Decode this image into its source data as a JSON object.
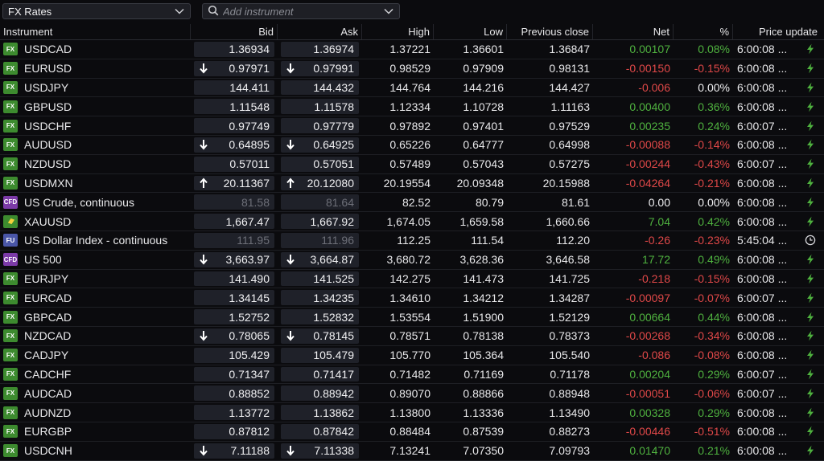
{
  "toolbar": {
    "list_name": "FX Rates",
    "search_placeholder": "Add instrument"
  },
  "columns": {
    "instrument": "Instrument",
    "bid": "Bid",
    "ask": "Ask",
    "high": "High",
    "low": "Low",
    "prev": "Previous close",
    "net": "Net",
    "pct": "%",
    "update": "Price update"
  },
  "colors": {
    "positive": "#4fb23f",
    "negative": "#e04848",
    "fx_badge": "#3d8b2f",
    "cfd_badge": "#7c3aa8",
    "fu_badge": "#4a56a8"
  },
  "rows": [
    {
      "badge": "FX",
      "name": "USDCAD",
      "bid": "1.36934",
      "ask": "1.36974",
      "arrow": "",
      "high": "1.37221",
      "low": "1.36601",
      "prev": "1.36847",
      "net": "0.00107",
      "pct": "0.08%",
      "dir": "pos",
      "time": "6:00:08 ...",
      "icon": "bolt-icon",
      "dim": false
    },
    {
      "badge": "FX",
      "name": "EURUSD",
      "bid": "0.97971",
      "ask": "0.97991",
      "arrow": "down",
      "high": "0.98529",
      "low": "0.97909",
      "prev": "0.98131",
      "net": "-0.00150",
      "pct": "-0.15%",
      "dir": "neg",
      "time": "6:00:08 ...",
      "icon": "bolt-icon",
      "dim": false
    },
    {
      "badge": "FX",
      "name": "USDJPY",
      "bid": "144.411",
      "ask": "144.432",
      "arrow": "",
      "high": "144.764",
      "low": "144.216",
      "prev": "144.427",
      "net": "-0.006",
      "pct": "0.00%",
      "dir": "neg",
      "pct_dir": "zero",
      "time": "6:00:08 ...",
      "icon": "bolt-icon",
      "dim": false
    },
    {
      "badge": "FX",
      "name": "GBPUSD",
      "bid": "1.11548",
      "ask": "1.11578",
      "arrow": "",
      "high": "1.12334",
      "low": "1.10728",
      "prev": "1.11163",
      "net": "0.00400",
      "pct": "0.36%",
      "dir": "pos",
      "time": "6:00:08 ...",
      "icon": "bolt-icon",
      "dim": false
    },
    {
      "badge": "FX",
      "name": "USDCHF",
      "bid": "0.97749",
      "ask": "0.97779",
      "arrow": "",
      "high": "0.97892",
      "low": "0.97401",
      "prev": "0.97529",
      "net": "0.00235",
      "pct": "0.24%",
      "dir": "pos",
      "time": "6:00:07 ...",
      "icon": "bolt-icon",
      "dim": false
    },
    {
      "badge": "FX",
      "name": "AUDUSD",
      "bid": "0.64895",
      "ask": "0.64925",
      "arrow": "down",
      "high": "0.65226",
      "low": "0.64777",
      "prev": "0.64998",
      "net": "-0.00088",
      "pct": "-0.14%",
      "dir": "neg",
      "time": "6:00:08 ...",
      "icon": "bolt-icon",
      "dim": false
    },
    {
      "badge": "FX",
      "name": "NZDUSD",
      "bid": "0.57011",
      "ask": "0.57051",
      "arrow": "",
      "high": "0.57489",
      "low": "0.57043",
      "prev": "0.57275",
      "net": "-0.00244",
      "pct": "-0.43%",
      "dir": "neg",
      "time": "6:00:07 ...",
      "icon": "bolt-icon",
      "dim": false
    },
    {
      "badge": "FX",
      "name": "USDMXN",
      "bid": "20.11367",
      "ask": "20.12080",
      "arrow": "up",
      "high": "20.19554",
      "low": "20.09348",
      "prev": "20.15988",
      "net": "-0.04264",
      "pct": "-0.21%",
      "dir": "neg",
      "time": "6:00:08 ...",
      "icon": "bolt-icon",
      "dim": false
    },
    {
      "badge": "CFD",
      "name": "US Crude, continuous",
      "bid": "81.58",
      "ask": "81.64",
      "arrow": "",
      "high": "82.52",
      "low": "80.79",
      "prev": "81.61",
      "net": "0.00",
      "pct": "0.00%",
      "dir": "zero",
      "time": "6:00:08 ...",
      "icon": "bolt-icon",
      "dim": true
    },
    {
      "badge": "AU",
      "name": "XAUUSD",
      "bid": "1,667.47",
      "ask": "1,667.92",
      "arrow": "",
      "high": "1,674.05",
      "low": "1,659.58",
      "prev": "1,660.66",
      "net": "7.04",
      "pct": "0.42%",
      "dir": "pos",
      "time": "6:00:08 ...",
      "icon": "bolt-icon",
      "dim": false
    },
    {
      "badge": "FU",
      "name": "US Dollar Index - continuous",
      "bid": "111.95",
      "ask": "111.96",
      "arrow": "",
      "high": "112.25",
      "low": "111.54",
      "prev": "112.20",
      "net": "-0.26",
      "pct": "-0.23%",
      "dir": "neg",
      "time": "5:45:04 ...",
      "icon": "clock-icon",
      "dim": true
    },
    {
      "badge": "CFD",
      "name": "US 500",
      "bid": "3,663.97",
      "ask": "3,664.87",
      "arrow": "down",
      "high": "3,680.72",
      "low": "3,628.36",
      "prev": "3,646.58",
      "net": "17.72",
      "pct": "0.49%",
      "dir": "pos",
      "time": "6:00:08 ...",
      "icon": "bolt-icon",
      "dim": false
    },
    {
      "badge": "FX",
      "name": "EURJPY",
      "bid": "141.490",
      "ask": "141.525",
      "arrow": "",
      "high": "142.275",
      "low": "141.473",
      "prev": "141.725",
      "net": "-0.218",
      "pct": "-0.15%",
      "dir": "neg",
      "time": "6:00:08 ...",
      "icon": "bolt-icon",
      "dim": false
    },
    {
      "badge": "FX",
      "name": "EURCAD",
      "bid": "1.34145",
      "ask": "1.34235",
      "arrow": "",
      "high": "1.34610",
      "low": "1.34212",
      "prev": "1.34287",
      "net": "-0.00097",
      "pct": "-0.07%",
      "dir": "neg",
      "time": "6:00:07 ...",
      "icon": "bolt-icon",
      "dim": false
    },
    {
      "badge": "FX",
      "name": "GBPCAD",
      "bid": "1.52752",
      "ask": "1.52832",
      "arrow": "",
      "high": "1.53554",
      "low": "1.51900",
      "prev": "1.52129",
      "net": "0.00664",
      "pct": "0.44%",
      "dir": "pos",
      "time": "6:00:08 ...",
      "icon": "bolt-icon",
      "dim": false
    },
    {
      "badge": "FX",
      "name": "NZDCAD",
      "bid": "0.78065",
      "ask": "0.78145",
      "arrow": "down",
      "high": "0.78571",
      "low": "0.78138",
      "prev": "0.78373",
      "net": "-0.00268",
      "pct": "-0.34%",
      "dir": "neg",
      "time": "6:00:08 ...",
      "icon": "bolt-icon",
      "dim": false
    },
    {
      "badge": "FX",
      "name": "CADJPY",
      "bid": "105.429",
      "ask": "105.479",
      "arrow": "",
      "high": "105.770",
      "low": "105.364",
      "prev": "105.540",
      "net": "-0.086",
      "pct": "-0.08%",
      "dir": "neg",
      "time": "6:00:08 ...",
      "icon": "bolt-icon",
      "dim": false
    },
    {
      "badge": "FX",
      "name": "CADCHF",
      "bid": "0.71347",
      "ask": "0.71417",
      "arrow": "",
      "high": "0.71482",
      "low": "0.71169",
      "prev": "0.71178",
      "net": "0.00204",
      "pct": "0.29%",
      "dir": "pos",
      "time": "6:00:07 ...",
      "icon": "bolt-icon",
      "dim": false
    },
    {
      "badge": "FX",
      "name": "AUDCAD",
      "bid": "0.88852",
      "ask": "0.88942",
      "arrow": "",
      "high": "0.89070",
      "low": "0.88866",
      "prev": "0.88948",
      "net": "-0.00051",
      "pct": "-0.06%",
      "dir": "neg",
      "time": "6:00:07 ...",
      "icon": "bolt-icon",
      "dim": false
    },
    {
      "badge": "FX",
      "name": "AUDNZD",
      "bid": "1.13772",
      "ask": "1.13862",
      "arrow": "",
      "high": "1.13800",
      "low": "1.13336",
      "prev": "1.13490",
      "net": "0.00328",
      "pct": "0.29%",
      "dir": "pos",
      "time": "6:00:08 ...",
      "icon": "bolt-icon",
      "dim": false
    },
    {
      "badge": "FX",
      "name": "EURGBP",
      "bid": "0.87812",
      "ask": "0.87842",
      "arrow": "",
      "high": "0.88484",
      "low": "0.87539",
      "prev": "0.88273",
      "net": "-0.00446",
      "pct": "-0.51%",
      "dir": "neg",
      "time": "6:00:08 ...",
      "icon": "bolt-icon",
      "dim": false
    },
    {
      "badge": "FX",
      "name": "USDCNH",
      "bid": "7.11188",
      "ask": "7.11338",
      "arrow": "down",
      "high": "7.13241",
      "low": "7.07350",
      "prev": "7.09793",
      "net": "0.01470",
      "pct": "0.21%",
      "dir": "pos",
      "time": "6:00:08 ...",
      "icon": "bolt-icon",
      "dim": false
    }
  ]
}
